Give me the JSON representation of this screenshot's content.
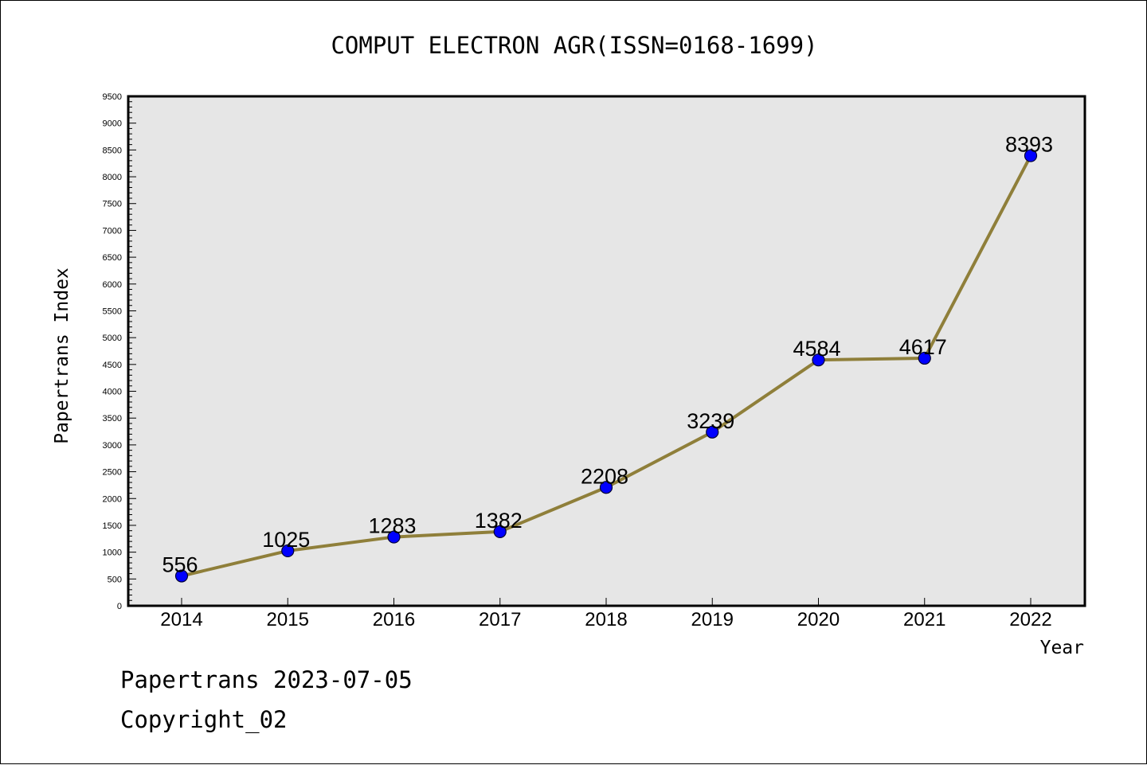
{
  "colors": {
    "plot_background": "#e6e6e6",
    "line": "#8f7f3a",
    "marker": "#0000ff",
    "marker_outline": "#000033",
    "axis": "#000000"
  },
  "footer": {
    "line1": "Papertrans 2023-07-05",
    "line2": "Copyright_02"
  },
  "chart_data": {
    "type": "line",
    "title": "COMPUT ELECTRON AGR(ISSN=0168-1699)",
    "xlabel": "Year",
    "ylabel": "Papertrans Index",
    "categories": [
      "2014",
      "2015",
      "2016",
      "2017",
      "2018",
      "2019",
      "2020",
      "2021",
      "2022"
    ],
    "series": [
      {
        "values": [
          556,
          1025,
          1283,
          1382,
          2208,
          3239,
          4584,
          4617,
          8393
        ]
      }
    ],
    "data_labels": [
      "556",
      "1025",
      "1283",
      "1382",
      "2208",
      "3239",
      "4584",
      "4617",
      "8393"
    ],
    "ylim": [
      0,
      9500
    ],
    "y_ticks": [
      "0",
      "500",
      "1000",
      "1500",
      "2000",
      "2500",
      "3000",
      "3500",
      "4000",
      "4500",
      "5000",
      "5500",
      "6000",
      "6500",
      "7000",
      "7500",
      "8000",
      "8500",
      "9000",
      "9500"
    ],
    "y_minor_step": 100,
    "grid": false,
    "legend": "none"
  }
}
